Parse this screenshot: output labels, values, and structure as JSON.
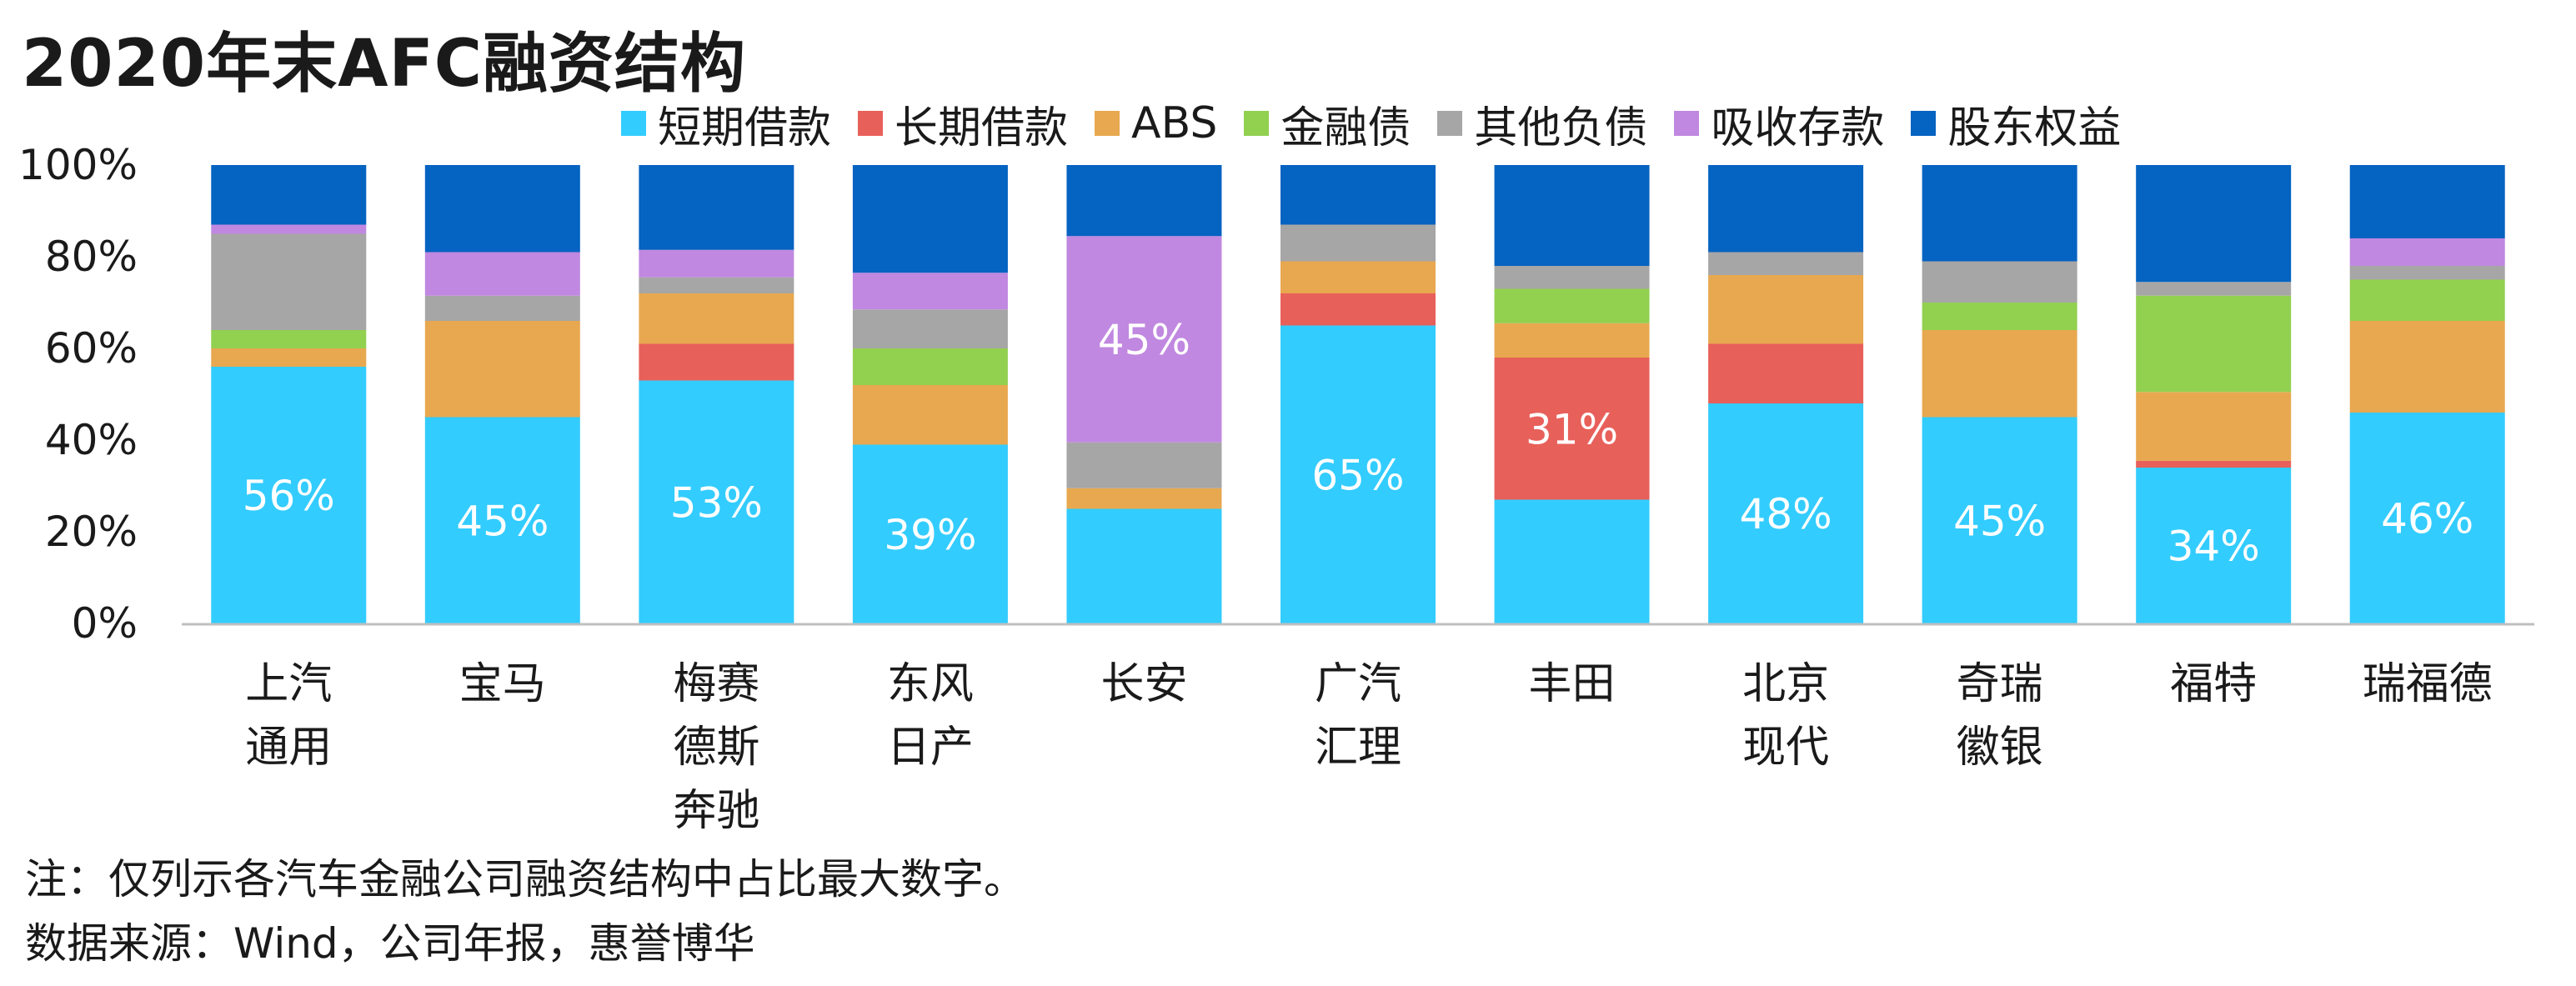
{
  "title": "2020年末AFC融资结构",
  "note": "注：仅列示各汽车金融公司融资结构中占比最大数字。",
  "source": "数据来源：Wind，公司年报，惠誉博华",
  "chart_data": {
    "type": "bar",
    "stacked": true,
    "percent": true,
    "ylim": [
      0,
      100
    ],
    "yticks": [
      "0%",
      "20%",
      "40%",
      "60%",
      "80%",
      "100%"
    ],
    "legend_position": "top",
    "categories": [
      [
        "上汽",
        "通用"
      ],
      [
        "宝马"
      ],
      [
        "梅赛",
        "德斯",
        "奔驰"
      ],
      [
        "东风",
        "日产"
      ],
      [
        "长安"
      ],
      [
        "广汽",
        "汇理"
      ],
      [
        "丰田"
      ],
      [
        "北京",
        "现代"
      ],
      [
        "奇瑞",
        "徽银"
      ],
      [
        "福特"
      ],
      [
        "瑞福德"
      ]
    ],
    "series": [
      {
        "name": "短期借款",
        "color": "#33CCFF",
        "values": [
          56,
          45,
          53,
          39,
          25,
          65,
          27,
          48,
          45,
          34,
          46
        ]
      },
      {
        "name": "长期借款",
        "color": "#E8605A",
        "values": [
          0,
          0,
          8,
          0,
          0,
          7,
          31,
          13,
          0,
          1.5,
          0
        ]
      },
      {
        "name": "ABS",
        "color": "#E8A850",
        "values": [
          4,
          21,
          11,
          13,
          4.5,
          7,
          7.5,
          15,
          19,
          15,
          20
        ]
      },
      {
        "name": "金融债",
        "color": "#92D050",
        "values": [
          4,
          0,
          0,
          8,
          0,
          0,
          7.5,
          0,
          6,
          21,
          9
        ]
      },
      {
        "name": "其他负债",
        "color": "#A6A6A6",
        "values": [
          21,
          5.5,
          3.5,
          8.5,
          10,
          8,
          5,
          5,
          9,
          3,
          3
        ]
      },
      {
        "name": "吸收存款",
        "color": "#C088E0",
        "values": [
          2,
          9.5,
          6,
          8,
          45,
          0,
          0,
          0,
          0,
          0,
          6
        ]
      },
      {
        "name": "股东权益",
        "color": "#0563C1",
        "values": [
          13,
          19,
          18.5,
          23.5,
          15.5,
          13,
          22,
          19,
          21,
          25.5,
          16
        ]
      }
    ],
    "data_labels": [
      {
        "category_index": 0,
        "series_index": 0,
        "text": "56%"
      },
      {
        "category_index": 1,
        "series_index": 0,
        "text": "45%"
      },
      {
        "category_index": 2,
        "series_index": 0,
        "text": "53%"
      },
      {
        "category_index": 3,
        "series_index": 0,
        "text": "39%"
      },
      {
        "category_index": 4,
        "series_index": 5,
        "text": "45%"
      },
      {
        "category_index": 5,
        "series_index": 0,
        "text": "65%"
      },
      {
        "category_index": 6,
        "series_index": 1,
        "text": "31%"
      },
      {
        "category_index": 7,
        "series_index": 0,
        "text": "48%"
      },
      {
        "category_index": 8,
        "series_index": 0,
        "text": "45%"
      },
      {
        "category_index": 9,
        "series_index": 0,
        "text": "34%"
      },
      {
        "category_index": 10,
        "series_index": 0,
        "text": "46%"
      }
    ]
  }
}
